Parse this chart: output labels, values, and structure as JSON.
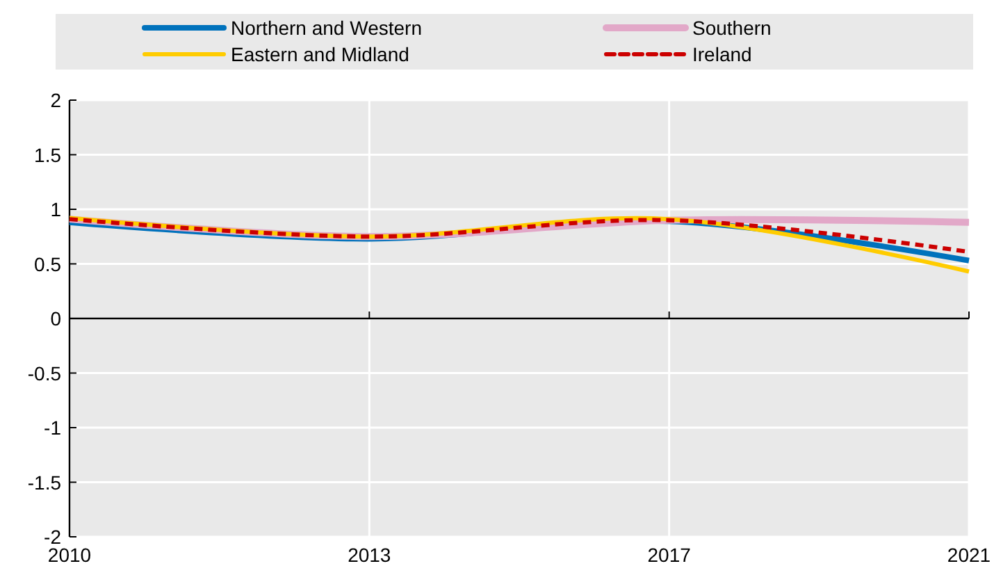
{
  "chart_data": {
    "type": "line",
    "categories": [
      "2010",
      "2013",
      "2017",
      "2021"
    ],
    "series": [
      {
        "name": "Northern and Western",
        "color": "#0072bc",
        "values": [
          0.88,
          0.73,
          0.89,
          0.53
        ]
      },
      {
        "name": "Southern",
        "color": "#e2a8c8",
        "values": [
          0.91,
          0.75,
          0.9,
          0.88
        ]
      },
      {
        "name": "Eastern and Midland",
        "color": "#ffcc00",
        "values": [
          0.92,
          0.75,
          0.91,
          0.43
        ]
      },
      {
        "name": "Ireland",
        "color": "#cc0000",
        "values": [
          0.91,
          0.75,
          0.9,
          0.61
        ],
        "line_style": "dashed"
      }
    ],
    "ylim": [
      -2,
      2
    ],
    "yticks": [
      -2,
      -1.5,
      -1,
      -0.5,
      0,
      0.5,
      1,
      1.5,
      2
    ],
    "grid": true,
    "legend": "top"
  }
}
